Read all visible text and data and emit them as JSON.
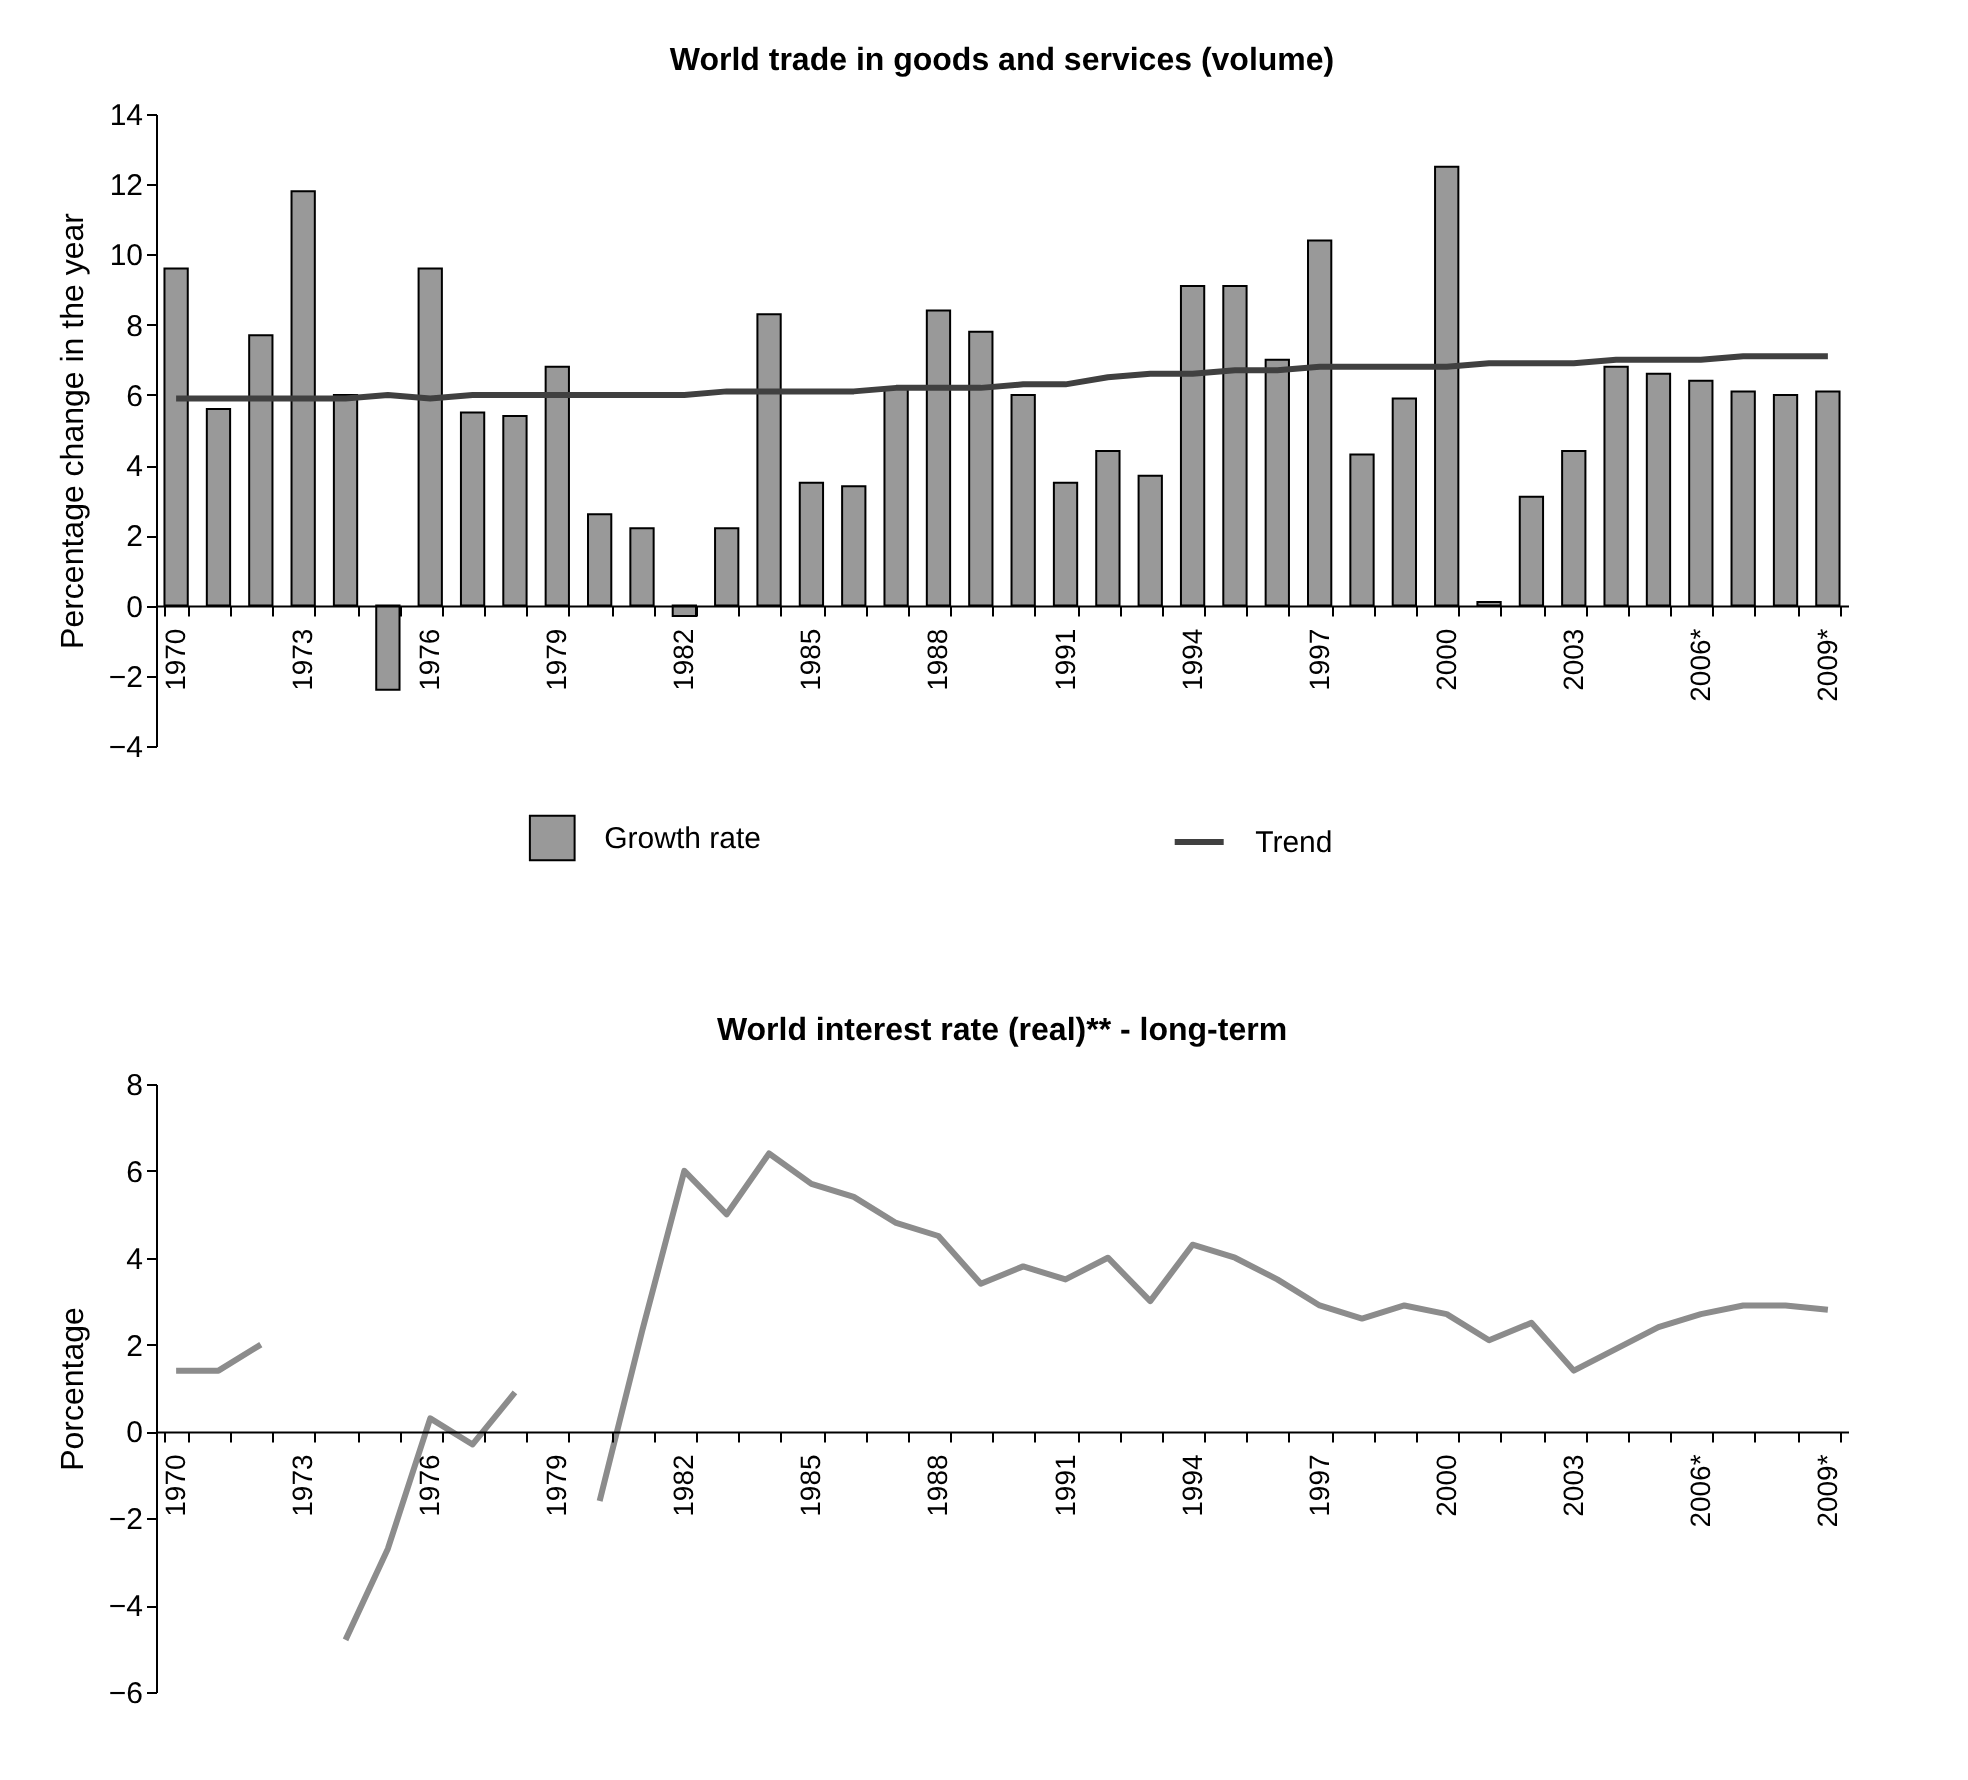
{
  "chart_data": [
    {
      "type": "bar",
      "title": "World trade in goods and services (volume)",
      "ylabel": "Percentage change in the year",
      "categories": [
        "1970",
        null,
        null,
        "1973",
        null,
        null,
        "1976",
        null,
        null,
        "1979",
        null,
        null,
        "1982",
        null,
        null,
        "1985",
        null,
        null,
        "1988",
        null,
        null,
        "1991",
        null,
        null,
        "1994",
        null,
        null,
        "1997",
        null,
        null,
        "2000",
        null,
        null,
        "2003",
        null,
        null,
        "2006*",
        null,
        null,
        "2009*"
      ],
      "series": [
        {
          "name": "Growth rate",
          "color": "#999999",
          "values": [
            9.6,
            5.6,
            7.7,
            11.8,
            6.0,
            -2.4,
            9.6,
            5.5,
            5.4,
            6.8,
            2.6,
            2.2,
            -0.3,
            2.2,
            8.3,
            3.5,
            3.4,
            6.2,
            8.4,
            7.8,
            6.0,
            3.5,
            4.4,
            3.7,
            9.1,
            9.1,
            7.0,
            10.4,
            4.3,
            5.9,
            12.5,
            0.1,
            3.1,
            4.4,
            6.8,
            6.6,
            6.4,
            6.1,
            6.0,
            6.1
          ]
        },
        {
          "name": "Trend",
          "type": "line",
          "color": "#404040",
          "values": [
            5.9,
            5.9,
            5.9,
            5.9,
            5.9,
            6.0,
            5.9,
            6.0,
            6.0,
            6.0,
            6.0,
            6.0,
            6.0,
            6.1,
            6.1,
            6.1,
            6.1,
            6.2,
            6.2,
            6.2,
            6.3,
            6.3,
            6.5,
            6.6,
            6.6,
            6.7,
            6.7,
            6.8,
            6.8,
            6.8,
            6.8,
            6.9,
            6.9,
            6.9,
            7.0,
            7.0,
            7.0,
            7.1,
            7.1,
            7.1
          ]
        }
      ],
      "ylim": [
        -4,
        14
      ],
      "yticks": [
        -4,
        -2,
        0,
        2,
        4,
        6,
        8,
        10,
        12,
        14
      ],
      "legend": "bottom"
    },
    {
      "type": "line",
      "title": "World interest rate (real)** - long-term",
      "ylabel": "Porcentage",
      "categories": [
        "1970",
        null,
        null,
        "1973",
        null,
        null,
        "1976",
        null,
        null,
        "1979",
        null,
        null,
        "1982",
        null,
        null,
        "1985",
        null,
        null,
        "1988",
        null,
        null,
        "1991",
        null,
        null,
        "1994",
        null,
        null,
        "1997",
        null,
        null,
        "2000",
        null,
        null,
        "2003",
        null,
        null,
        "2006*",
        null,
        null,
        "2009*"
      ],
      "series": [
        {
          "color": "#8c8c8c",
          "values": [
            1.4,
            1.4,
            2.0,
            null,
            -4.8,
            -2.7,
            0.3,
            -0.3,
            0.9,
            null,
            -1.6,
            2.3,
            6.0,
            5.0,
            6.4,
            5.7,
            5.4,
            4.8,
            4.5,
            3.4,
            3.8,
            3.5,
            4.0,
            3.0,
            4.3,
            4.0,
            3.5,
            2.9,
            2.6,
            2.9,
            2.7,
            2.1,
            2.5,
            1.4,
            1.9,
            2.4,
            2.7,
            2.9,
            2.9,
            2.8
          ]
        }
      ],
      "ylim": [
        -6,
        8
      ],
      "yticks": [
        -6,
        -4,
        -2,
        0,
        2,
        4,
        6,
        8
      ]
    }
  ]
}
